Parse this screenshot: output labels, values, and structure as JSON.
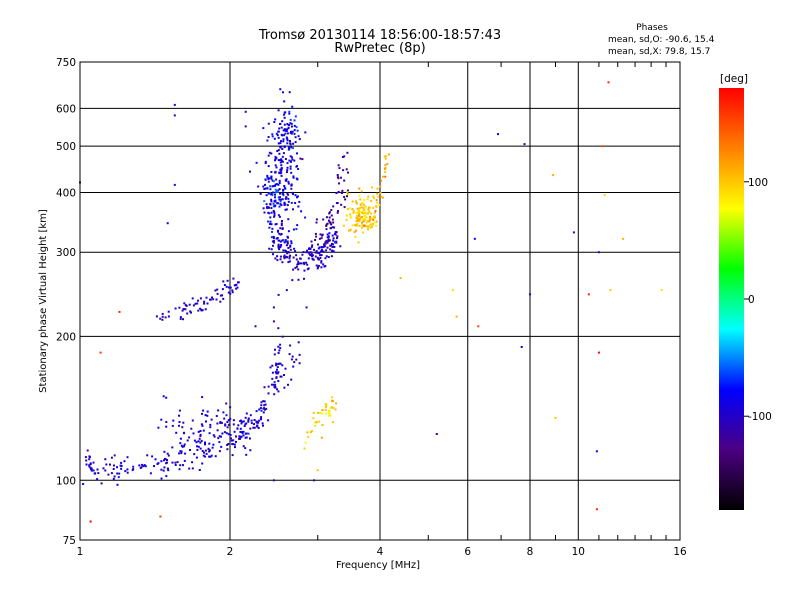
{
  "chart_data": {
    "type": "scatter",
    "title": "Tromsø 20130114 18:56:00-18:57:43",
    "subtitle": "RwPretec (8p)",
    "xlabel": "Frequency [MHz]",
    "ylabel": "Stationary phase Virtual Height [km]",
    "xscale": "log",
    "yscale": "log",
    "xlim": [
      1,
      16
    ],
    "ylim": [
      75,
      750
    ],
    "x_ticks": [
      1,
      2,
      4,
      6,
      8,
      10,
      16
    ],
    "y_ticks": [
      75,
      100,
      200,
      300,
      400,
      500,
      600,
      750
    ],
    "grid": true,
    "stats": {
      "title": "Phases",
      "line_o": "mean, sd,O: -90.6, 15.4",
      "line_x": "mean, sd,X: 79.8, 15.7"
    },
    "colorbar": {
      "label": "[deg]",
      "range": [
        -180,
        180
      ],
      "ticks": [
        100,
        0,
        -100
      ],
      "colormap": [
        "#000000",
        "#4b0082",
        "#0000ff",
        "#00ffff",
        "#00ff00",
        "#ffff00",
        "#ff8000",
        "#ff0000"
      ]
    },
    "traces": [
      {
        "kind": "curve",
        "phase": -95,
        "points": [
          [
            1.03,
            107
          ],
          [
            1.08,
            106
          ],
          [
            1.15,
            106
          ],
          [
            1.25,
            107
          ],
          [
            1.35,
            108
          ],
          [
            1.45,
            109
          ],
          [
            1.55,
            110
          ],
          [
            1.65,
            112
          ],
          [
            1.75,
            115
          ],
          [
            1.85,
            118
          ],
          [
            1.95,
            121
          ],
          [
            2.05,
            124
          ],
          [
            2.15,
            127
          ],
          [
            2.25,
            132
          ],
          [
            2.33,
            140
          ],
          [
            2.4,
            150
          ],
          [
            2.45,
            160
          ],
          [
            2.5,
            175
          ],
          [
            2.53,
            190
          ]
        ],
        "spread": 0.035,
        "n": 260
      },
      {
        "kind": "curve",
        "phase": -95,
        "points": [
          [
            1.45,
            140
          ],
          [
            1.55,
            132
          ],
          [
            1.62,
            120
          ],
          [
            1.72,
            125
          ],
          [
            1.8,
            132
          ],
          [
            1.88,
            138
          ],
          [
            1.95,
            130
          ],
          [
            2.05,
            120
          ],
          [
            2.15,
            125
          ]
        ],
        "spread": 0.05,
        "n": 90
      },
      {
        "kind": "curve",
        "phase": -100,
        "points": [
          [
            2.5,
            160
          ],
          [
            2.6,
            165
          ],
          [
            2.68,
            175
          ],
          [
            2.73,
            182
          ]
        ],
        "spread": 0.04,
        "n": 18
      },
      {
        "kind": "curve",
        "phase": -100,
        "points": [
          [
            1.4,
            218
          ],
          [
            1.5,
            220
          ],
          [
            1.6,
            225
          ],
          [
            1.7,
            230
          ],
          [
            1.8,
            237
          ],
          [
            1.9,
            245
          ],
          [
            2.0,
            252
          ],
          [
            2.08,
            258
          ]
        ],
        "spread": 0.02,
        "n": 70
      },
      {
        "kind": "cluster",
        "phase": -92,
        "center": [
          2.55,
          430
        ],
        "sx": 0.04,
        "sy": 0.18,
        "n": 220
      },
      {
        "kind": "cluster",
        "phase": -80,
        "center": [
          2.6,
          520
        ],
        "sx": 0.03,
        "sy": 0.08,
        "n": 50
      },
      {
        "kind": "curve",
        "phase": -100,
        "points": [
          [
            2.35,
            430
          ],
          [
            2.45,
            320
          ],
          [
            2.6,
            300
          ],
          [
            2.8,
            285
          ],
          [
            3.0,
            292
          ],
          [
            3.15,
            305
          ],
          [
            3.25,
            325
          ]
        ],
        "spread": 0.035,
        "n": 200
      },
      {
        "kind": "curve",
        "phase": -118,
        "points": [
          [
            2.95,
            320
          ],
          [
            3.1,
            335
          ],
          [
            3.2,
            350
          ],
          [
            3.3,
            380
          ],
          [
            3.35,
            420
          ],
          [
            3.4,
            470
          ]
        ],
        "spread": 0.04,
        "n": 70
      },
      {
        "kind": "cluster",
        "phase": -70,
        "center": [
          2.45,
          390
        ],
        "sx": 0.03,
        "sy": 0.05,
        "n": 30
      },
      {
        "kind": "cluster",
        "phase": 100,
        "center": [
          3.7,
          360
        ],
        "sx": 0.035,
        "sy": 0.05,
        "n": 140
      },
      {
        "kind": "curve",
        "phase": 110,
        "points": [
          [
            3.9,
            380
          ],
          [
            4.0,
            400
          ],
          [
            4.05,
            430
          ],
          [
            4.1,
            480
          ]
        ],
        "spread": 0.03,
        "n": 25
      },
      {
        "kind": "curve",
        "phase": 95,
        "points": [
          [
            2.85,
            125
          ],
          [
            2.95,
            130
          ],
          [
            3.05,
            135
          ],
          [
            3.15,
            140
          ],
          [
            3.25,
            145
          ]
        ],
        "spread": 0.03,
        "n": 40
      },
      {
        "kind": "scatter",
        "phase": -100,
        "points": [
          [
            1.0,
            420
          ],
          [
            1.55,
            610
          ],
          [
            1.55,
            580
          ],
          [
            1.55,
            415
          ],
          [
            1.5,
            345
          ],
          [
            2.15,
            590
          ],
          [
            2.15,
            550
          ],
          [
            2.25,
            210
          ],
          [
            2.45,
            230
          ],
          [
            2.45,
            215
          ],
          [
            2.5,
            208
          ],
          [
            2.85,
            230
          ],
          [
            2.85,
            300
          ],
          [
            2.6,
            250
          ],
          [
            2.45,
            100
          ],
          [
            2.95,
            100
          ],
          [
            5.2,
            125
          ],
          [
            6.2,
            320
          ],
          [
            7.7,
            190
          ],
          [
            7.8,
            505
          ],
          [
            9.8,
            330
          ],
          [
            11.0,
            300
          ],
          [
            10.9,
            115
          ],
          [
            6.9,
            530
          ],
          [
            8.0,
            245
          ]
        ],
        "jitter": 0
      },
      {
        "kind": "scatter",
        "phase": 160,
        "points": [
          [
            1.05,
            82
          ],
          [
            1.45,
            84
          ],
          [
            1.1,
            185
          ],
          [
            1.2,
            225
          ],
          [
            6.3,
            210
          ],
          [
            10.5,
            245
          ],
          [
            11.2,
            500
          ],
          [
            11.0,
            185
          ],
          [
            10.9,
            87
          ],
          [
            11.5,
            680
          ]
        ],
        "jitter": 0
      },
      {
        "kind": "scatter",
        "phase": 110,
        "points": [
          [
            4.4,
            265
          ],
          [
            5.6,
            250
          ],
          [
            5.7,
            220
          ],
          [
            9.0,
            135
          ],
          [
            11.3,
            395
          ],
          [
            11.6,
            250
          ],
          [
            12.3,
            320
          ],
          [
            14.7,
            250
          ],
          [
            8.9,
            435
          ],
          [
            3.0,
            105
          ]
        ],
        "jitter": 0
      }
    ]
  }
}
